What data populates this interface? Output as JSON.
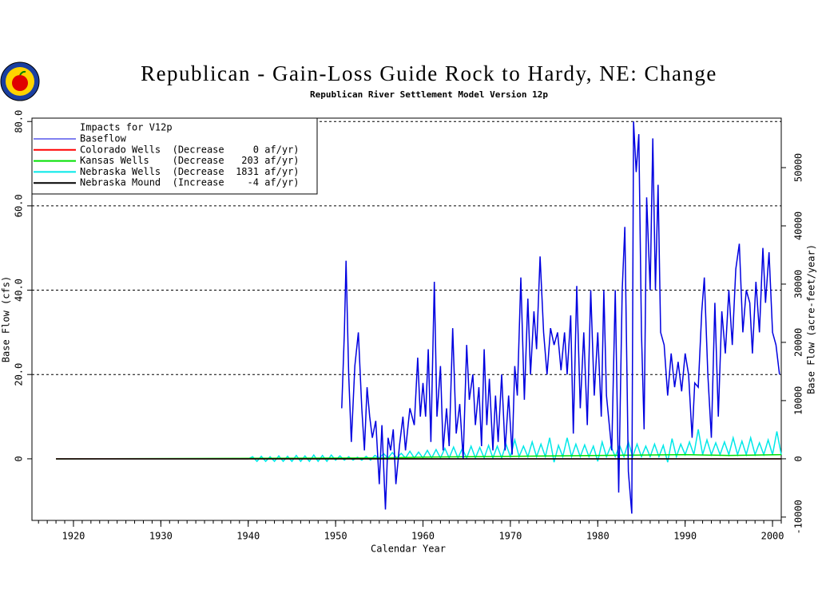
{
  "chart_data": {
    "type": "line",
    "title": "Republican - Gain-Loss Guide Rock to Hardy, NE: Change",
    "subtitle": "Republican River Settlement Model Version 12p",
    "xlabel": "Calendar Year",
    "ylabel": "Base Flow (cfs)",
    "y2label": "Base Flow (acre-feet/year)",
    "legend_title": "Impacts for V12p",
    "legend": "upper left",
    "grid": true,
    "xlim": [
      1915.25,
      2001.0
    ],
    "ylim": [
      -14.6,
      80.8
    ],
    "y2lim": [
      -10570,
      58498
    ],
    "xticks": [
      1920,
      1930,
      1940,
      1950,
      1960,
      1970,
      1980,
      1990,
      2000
    ],
    "yticks": [
      0,
      {
        "value": 20,
        "label": "20.0"
      },
      {
        "value": 40,
        "label": "40.0"
      },
      {
        "value": 60,
        "label": "60.0"
      },
      {
        "value": 80,
        "label": "80.0"
      }
    ],
    "y2ticks": [
      -10000,
      0,
      10000,
      20000,
      30000,
      40000,
      50000
    ],
    "series": [
      {
        "name": "Baseflow",
        "color": "#0000e0",
        "x": [
          1950.7,
          1951.0,
          1951.2,
          1951.5,
          1951.8,
          1952.2,
          1952.6,
          1953.0,
          1953.3,
          1953.6,
          1953.9,
          1954.2,
          1954.6,
          1955.0,
          1955.3,
          1955.7,
          1956.0,
          1956.3,
          1956.6,
          1956.9,
          1957.3,
          1957.7,
          1958.0,
          1958.5,
          1959.0,
          1959.4,
          1959.7,
          1960.0,
          1960.3,
          1960.6,
          1960.9,
          1961.3,
          1961.6,
          1962.0,
          1962.3,
          1962.7,
          1963.0,
          1963.4,
          1963.8,
          1964.2,
          1964.6,
          1965.0,
          1965.3,
          1965.7,
          1966.0,
          1966.4,
          1966.7,
          1967.0,
          1967.3,
          1967.6,
          1968.0,
          1968.3,
          1968.6,
          1969.0,
          1969.4,
          1969.8,
          1970.2,
          1970.5,
          1970.8,
          1971.2,
          1971.6,
          1972.0,
          1972.3,
          1972.7,
          1973.0,
          1973.4,
          1973.8,
          1974.2,
          1974.6,
          1975.0,
          1975.4,
          1975.8,
          1976.2,
          1976.5,
          1976.9,
          1977.2,
          1977.6,
          1978.0,
          1978.4,
          1978.8,
          1979.2,
          1979.6,
          1980.0,
          1980.4,
          1980.7,
          1981.0,
          1981.6,
          1982.0,
          1982.4,
          1982.8,
          1983.1,
          1983.5,
          1983.9,
          1984.1,
          1984.4,
          1984.7,
          1985.0,
          1985.3,
          1985.6,
          1986.0,
          1986.3,
          1986.6,
          1986.9,
          1987.2,
          1987.6,
          1988.0,
          1988.4,
          1988.8,
          1989.2,
          1989.6,
          1990.0,
          1990.4,
          1990.8,
          1991.1,
          1991.5,
          1991.9,
          1992.2,
          1992.6,
          1993.0,
          1993.4,
          1993.8,
          1994.2,
          1994.6,
          1995.0,
          1995.4,
          1995.8,
          1996.2,
          1996.6,
          1997.0,
          1997.4,
          1997.7,
          1998.1,
          1998.5,
          1998.9,
          1999.2,
          1999.6,
          2000.0,
          2000.4,
          2000.8
        ],
        "values": [
          12,
          30,
          47,
          20,
          4,
          22,
          30,
          12,
          2,
          17,
          10,
          5,
          9,
          -6,
          8,
          -12,
          5,
          2,
          7,
          -6,
          3,
          10,
          2,
          12,
          8,
          24,
          10,
          18,
          10,
          26,
          4,
          42,
          10,
          22,
          2,
          12,
          3,
          31,
          6,
          13,
          0,
          27,
          14,
          20,
          8,
          17,
          3,
          26,
          8,
          19,
          2,
          15,
          4,
          20,
          2,
          15,
          1,
          22,
          15,
          43,
          14,
          38,
          20,
          35,
          26,
          48,
          30,
          20,
          31,
          27,
          30,
          21,
          30,
          20,
          34,
          6,
          41,
          12,
          30,
          8,
          40,
          15,
          30,
          10,
          40,
          15,
          2,
          40,
          -8,
          40,
          55,
          -3,
          -13,
          80,
          68,
          77,
          30,
          7,
          62,
          40,
          76,
          40,
          65,
          30,
          27,
          15,
          25,
          17,
          23,
          16,
          25,
          20,
          5,
          18,
          17,
          35,
          43,
          20,
          5,
          37,
          10,
          35,
          25,
          40,
          27,
          45,
          51,
          30,
          40,
          37,
          25,
          42,
          30,
          50,
          37,
          49,
          30,
          27,
          20
        ]
      },
      {
        "name": "Colorado Wells  (Decrease     0 af/yr)",
        "color": "#ff0000",
        "x": [
          1918,
          2001
        ],
        "values": [
          0,
          0
        ]
      },
      {
        "name": "Kansas Wells    (Decrease   203 af/yr)",
        "color": "#00e000",
        "x": [
          1918,
          1955,
          1960,
          1970,
          1980,
          1990,
          1995,
          2001
        ],
        "values": [
          0,
          0.2,
          0.4,
          0.6,
          0.8,
          1.0,
          0.8,
          1.0
        ]
      },
      {
        "name": "Nebraska Wells  (Decrease  1831 af/yr)",
        "color": "#00e8e8",
        "x": [
          1918,
          1940.0,
          1940.5,
          1941.0,
          1941.5,
          1942.0,
          1942.5,
          1943.0,
          1943.5,
          1944.0,
          1944.5,
          1945.0,
          1945.5,
          1946.0,
          1946.5,
          1947.0,
          1947.5,
          1948.0,
          1948.5,
          1949.0,
          1949.5,
          1950.0,
          1950.5,
          1951.0,
          1951.5,
          1952.0,
          1952.5,
          1953.0,
          1953.5,
          1954.0,
          1954.5,
          1955.0,
          1955.5,
          1956.0,
          1956.5,
          1957.0,
          1957.5,
          1958.0,
          1958.5,
          1959.0,
          1959.5,
          1960.0,
          1960.5,
          1961.0,
          1961.5,
          1962.0,
          1962.5,
          1963.0,
          1963.5,
          1964.0,
          1964.5,
          1965.0,
          1965.5,
          1966.0,
          1966.5,
          1967.0,
          1967.5,
          1968.0,
          1968.5,
          1969.0,
          1969.5,
          1970.0,
          1970.5,
          1971.0,
          1971.5,
          1972.0,
          1972.5,
          1973.0,
          1973.5,
          1974.0,
          1974.5,
          1975.0,
          1975.5,
          1976.0,
          1976.5,
          1977.0,
          1977.5,
          1978.0,
          1978.5,
          1979.0,
          1979.5,
          1980.0,
          1980.5,
          1981.0,
          1981.5,
          1982.0,
          1982.5,
          1983.0,
          1983.5,
          1984.0,
          1984.5,
          1985.0,
          1985.5,
          1986.0,
          1986.5,
          1987.0,
          1987.5,
          1988.0,
          1988.5,
          1989.0,
          1989.5,
          1990.0,
          1990.5,
          1991.0,
          1991.5,
          1992.0,
          1992.5,
          1993.0,
          1993.5,
          1994.0,
          1994.5,
          1995.0,
          1995.5,
          1996.0,
          1996.5,
          1997.0,
          1997.5,
          1998.0,
          1998.5,
          1999.0,
          1999.5,
          2000.0,
          2000.5,
          2001.0
        ],
        "values": [
          0,
          0,
          0.5,
          -0.6,
          0.6,
          -0.6,
          0.5,
          -0.6,
          0.7,
          -0.6,
          0.6,
          -0.6,
          0.8,
          -0.6,
          0.7,
          -0.6,
          0.9,
          -0.6,
          0.8,
          -0.6,
          0.9,
          -0.3,
          0.7,
          -0.3,
          0.5,
          -0.3,
          0.4,
          -0.3,
          0.6,
          -0.3,
          0.8,
          0.2,
          1.2,
          0.2,
          1.5,
          0.2,
          1.3,
          0.2,
          1.8,
          0.2,
          1.6,
          0.2,
          2.0,
          0.2,
          2.2,
          0.2,
          2.5,
          0.2,
          2.8,
          0.2,
          2.4,
          0.2,
          3.0,
          0.2,
          2.7,
          0.2,
          3.2,
          0.2,
          3.0,
          0.2,
          3.5,
          0.5,
          4.5,
          0.5,
          3.0,
          0.5,
          4.0,
          0.5,
          3.5,
          0.5,
          5.0,
          -0.8,
          3.2,
          0.5,
          5.0,
          0.5,
          3.5,
          0.5,
          3.3,
          0.5,
          3.0,
          -0.6,
          4.0,
          0.5,
          3.0,
          0.5,
          3.2,
          0.5,
          4.0,
          0.5,
          3.5,
          0.5,
          3.0,
          0.5,
          3.5,
          0.5,
          3.2,
          -0.8,
          4.8,
          0.5,
          3.5,
          1.0,
          4.0,
          1.0,
          7.0,
          1.0,
          4.5,
          1.0,
          3.8,
          1.0,
          4.0,
          1.0,
          5.0,
          1.0,
          4.2,
          1.0,
          5.0,
          1.0,
          3.8,
          1.0,
          4.5,
          1.0,
          6.5,
          1.0
        ]
      },
      {
        "name": "Nebraska Mound  (Increase    -4 af/yr)",
        "color": "#000000",
        "x": [
          1918,
          2001
        ],
        "values": [
          0,
          0
        ]
      }
    ]
  }
}
